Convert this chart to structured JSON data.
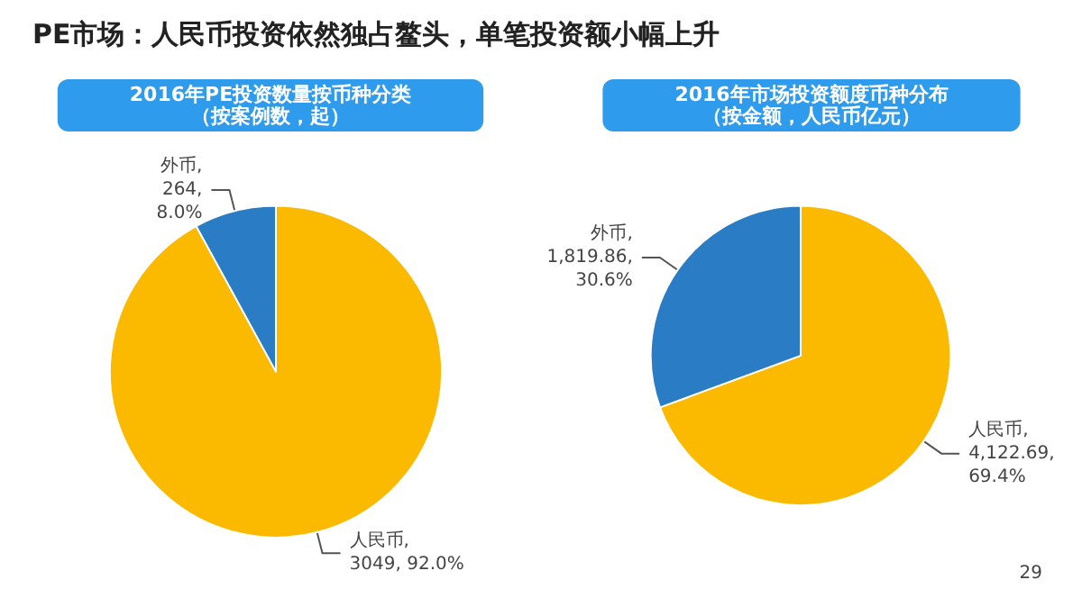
{
  "chart_data": [
    {
      "type": "pie",
      "title": "2016年PE投资数量按币种分类",
      "subtitle": "（按案例数，起）",
      "annotations": [
        "PE市场：人民币投资依然独占鳌头，单笔投资额小幅上升"
      ],
      "categories": [
        "人民币",
        "外币"
      ],
      "values": [
        3049,
        264
      ],
      "colors": [
        "#fbb900",
        "#2a7cc4"
      ],
      "value_labels": [
        ",\n3049, 92.0%",
        ",\n264,\n8.0%"
      ]
    },
    {
      "type": "pie",
      "title": "2016年市场投资额度币种分布",
      "subtitle": "（按金额，人民币亿元）",
      "annotations": [
        "29"
      ],
      "categories": [
        "人民币",
        "外币"
      ],
      "values": [
        4122.69,
        1819.86
      ],
      "colors": [
        "#fbb900",
        "#2a7cc4"
      ],
      "value_labels": [
        ",\n4,122.69,\n69.4%",
        ",\n1,819.86,\n30.6%"
      ]
    }
  ]
}
